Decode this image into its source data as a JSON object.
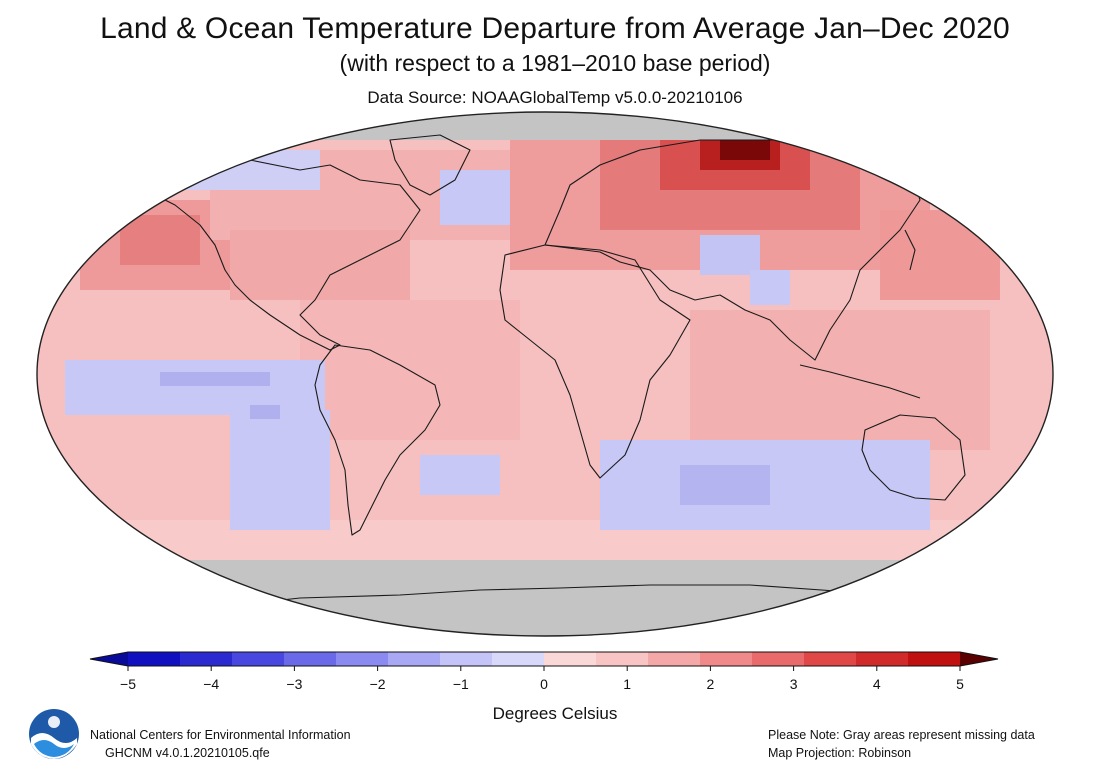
{
  "header": {
    "title": "Land & Ocean Temperature Departure from Average Jan–Dec 2020",
    "subtitle": "(with respect to a 1981–2010 base period)",
    "source": "Data Source: NOAAGlobalTemp v5.0.0-20210106"
  },
  "colorbar": {
    "ticks": [
      "−5",
      "−4",
      "−3",
      "−2",
      "−1",
      "0",
      "1",
      "2",
      "3",
      "4",
      "5"
    ],
    "label": "Degrees Celsius",
    "colors": [
      "#1010c0",
      "#2a2ad0",
      "#4848e0",
      "#6a6ae8",
      "#8a8af0",
      "#a8a8f4",
      "#c4c4f8",
      "#d8d8fa",
      "#fad8d8",
      "#f8c4c4",
      "#f4a8a8",
      "#f08a8a",
      "#e86a6a",
      "#e04848",
      "#d02a2a",
      "#c01010"
    ],
    "under_color": "#0a0a9a",
    "over_color": "#5a0000"
  },
  "map": {
    "projection": "Robinson",
    "ocean_base_color": "#f6c0c0",
    "missing_color": "#c4c4c4"
  },
  "footer": {
    "org": "National Centers for Environmental Information",
    "dataset": "GHCNM v4.0.1.20210105.qfe",
    "note": "Please Note: Gray areas represent missing data",
    "projection": "Map Projection: Robinson",
    "logo_text": "NOAA"
  }
}
